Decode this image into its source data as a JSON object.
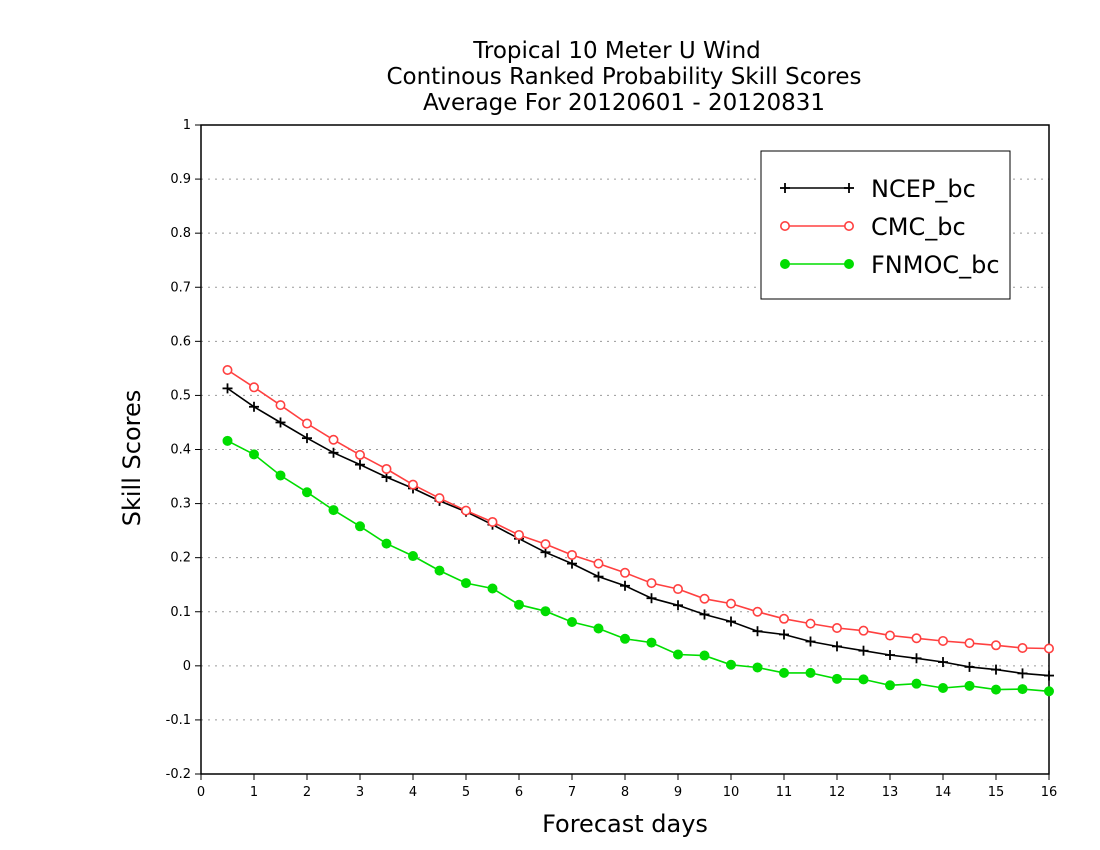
{
  "chart_data": {
    "type": "line",
    "title": "Tropical 10 Meter U Wind",
    "subtitle": "Continous Ranked Probability Skill Scores",
    "subtitle2": "Average For 20120601 - 20120831",
    "xlabel": "Forecast days",
    "ylabel": "Skill Scores",
    "xlim": [
      0,
      16
    ],
    "ylim": [
      -0.2,
      1.0
    ],
    "xticks": [
      0,
      1,
      2,
      3,
      4,
      5,
      6,
      7,
      8,
      9,
      10,
      11,
      12,
      13,
      14,
      15,
      16
    ],
    "yticks": [
      -0.2,
      -0.1,
      0,
      0.1,
      0.2,
      0.3,
      0.4,
      0.5,
      0.6,
      0.7,
      0.8,
      0.9,
      1
    ],
    "ytick_labels": [
      "-0.2",
      "-0.1",
      "0",
      "0.1",
      "0.2",
      "0.3",
      "0.4",
      "0.5",
      "0.6",
      "0.7",
      "0.8",
      "0.9",
      "1"
    ],
    "grid": "horizontal-dotted",
    "legend_position": "top-right",
    "x": [
      0.5,
      1,
      1.5,
      2,
      2.5,
      3,
      3.5,
      4,
      4.5,
      5,
      5.5,
      6,
      6.5,
      7,
      7.5,
      8,
      8.5,
      9,
      9.5,
      10,
      10.5,
      11,
      11.5,
      12,
      12.5,
      13,
      13.5,
      14,
      14.5,
      15,
      15.5,
      16
    ],
    "series": [
      {
        "name": "NCEP_bc",
        "color": "#000000",
        "marker": "plus",
        "values": [
          0.513,
          0.479,
          0.45,
          0.421,
          0.394,
          0.372,
          0.349,
          0.328,
          0.305,
          0.285,
          0.261,
          0.235,
          0.21,
          0.189,
          0.165,
          0.148,
          0.125,
          0.112,
          0.095,
          0.082,
          0.064,
          0.058,
          0.045,
          0.036,
          0.028,
          0.02,
          0.014,
          0.007,
          -0.002,
          -0.007,
          -0.014,
          -0.018
        ]
      },
      {
        "name": "CMC_bc",
        "color": "#ff4040",
        "marker": "open-circle",
        "values": [
          0.547,
          0.515,
          0.482,
          0.448,
          0.418,
          0.39,
          0.364,
          0.335,
          0.31,
          0.287,
          0.266,
          0.242,
          0.225,
          0.205,
          0.189,
          0.172,
          0.153,
          0.142,
          0.124,
          0.115,
          0.1,
          0.087,
          0.078,
          0.07,
          0.065,
          0.056,
          0.051,
          0.046,
          0.042,
          0.038,
          0.033,
          0.032
        ]
      },
      {
        "name": "FNMOC_bc",
        "color": "#00dd00",
        "marker": "filled-circle",
        "values": [
          0.416,
          0.391,
          0.352,
          0.321,
          0.288,
          0.258,
          0.226,
          0.203,
          0.176,
          0.153,
          0.143,
          0.113,
          0.101,
          0.081,
          0.069,
          0.05,
          0.043,
          0.021,
          0.019,
          0.002,
          -0.003,
          -0.013,
          -0.013,
          -0.024,
          -0.025,
          -0.036,
          -0.033,
          -0.041,
          -0.037,
          -0.044,
          -0.043,
          -0.047
        ]
      }
    ]
  }
}
